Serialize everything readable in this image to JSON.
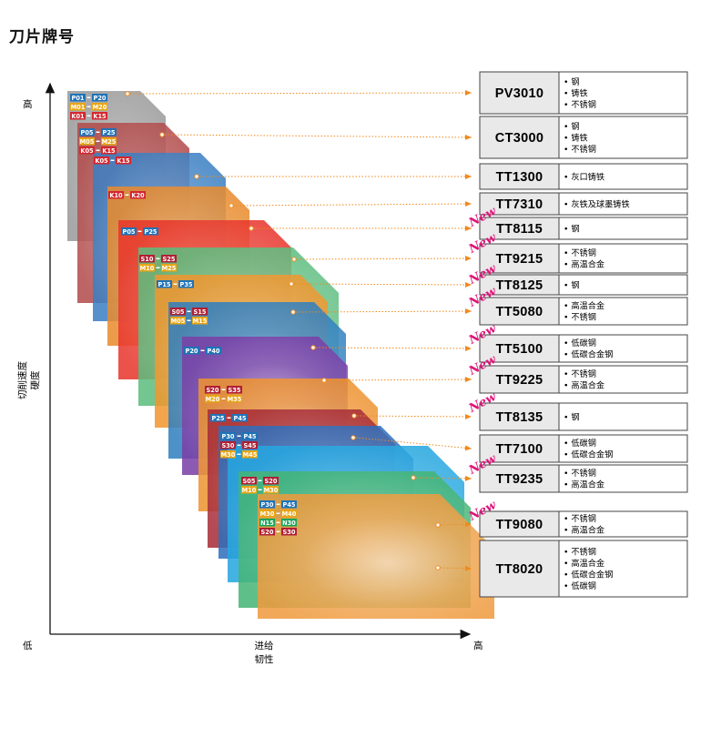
{
  "page": {
    "title": "刀片牌号"
  },
  "axes": {
    "y_high": "高",
    "x_low": "低",
    "x_high": "高",
    "y_label": [
      "切削速度",
      "硬度"
    ],
    "x_label": [
      "进给",
      "韧性"
    ]
  },
  "colors": {
    "arrow": "#f08a1c",
    "box_fill": "#e9e9e9",
    "box_border": "#444444",
    "new": "#e0157a"
  },
  "grades": [
    {
      "code": "PV3010",
      "new": false,
      "materials": [
        "钢",
        "铸铁",
        "不锈钢"
      ],
      "color": "#9a9a9a",
      "tags": [
        [
          "P01",
          "P20"
        ],
        [
          "M01",
          "M20"
        ],
        [
          "K01",
          "K15"
        ]
      ]
    },
    {
      "code": "CT3000",
      "new": false,
      "materials": [
        "钢",
        "铸铁",
        "不锈钢"
      ],
      "color": "#b24a4a",
      "tags": [
        [
          "P05",
          "P25"
        ],
        [
          "M05",
          "M25"
        ],
        [
          "K05",
          "K15"
        ]
      ]
    },
    {
      "code": "TT1300",
      "new": false,
      "materials": [
        "灰口铸铁"
      ],
      "color": "#3a7fc2",
      "tags": [
        [
          "K05",
          "K15"
        ]
      ]
    },
    {
      "code": "TT7310",
      "new": false,
      "materials": [
        "灰铁及球墨铸铁"
      ],
      "color": "#e98a2c",
      "tags": [
        [
          "K10",
          "K20"
        ]
      ]
    },
    {
      "code": "TT8115",
      "new": true,
      "materials": [
        "钢"
      ],
      "color": "#e8352c",
      "tags": [
        [
          "P05",
          "P25"
        ]
      ]
    },
    {
      "code": "TT9215",
      "new": true,
      "materials": [
        "不锈钢",
        "高温合金"
      ],
      "color": "#5cbd7e",
      "tags": [
        [
          "S10",
          "S25"
        ],
        [
          "M10",
          "M25"
        ]
      ]
    },
    {
      "code": "TT8125",
      "new": true,
      "materials": [
        "钢"
      ],
      "color": "#f0962e",
      "tags": [
        [
          "P15",
          "P35"
        ]
      ]
    },
    {
      "code": "TT5080",
      "new": true,
      "materials": [
        "高温合金",
        "不锈钢"
      ],
      "color": "#2f7fbf",
      "tags": [
        [
          "S05",
          "S15"
        ],
        [
          "M05",
          "M15"
        ]
      ]
    },
    {
      "code": "TT5100",
      "new": true,
      "materials": [
        "低碳钢",
        "低碳合金钢"
      ],
      "color": "#7a3fa6",
      "tags": [
        [
          "P20",
          "P40"
        ]
      ]
    },
    {
      "code": "TT9225",
      "new": true,
      "materials": [
        "不锈钢",
        "高温合金"
      ],
      "color": "#ee9330",
      "tags": [
        [
          "S20",
          "S35"
        ],
        [
          "M20",
          "M35"
        ]
      ]
    },
    {
      "code": "TT8135",
      "new": true,
      "materials": [
        "钢"
      ],
      "color": "#a62c38",
      "tags": [
        [
          "P25",
          "P45"
        ]
      ]
    },
    {
      "code": "TT7100",
      "new": false,
      "materials": [
        "低碳钢",
        "低碳合金钢"
      ],
      "color": "#2e6fbc",
      "tags": [
        [
          "P30",
          "P45"
        ],
        [
          "S30",
          "S45"
        ],
        [
          "M30",
          "M45"
        ]
      ]
    },
    {
      "code": "TT9235",
      "new": true,
      "materials": [
        "不锈钢",
        "高温合金"
      ],
      "color": "#25a6e0",
      "tags": [
        [
          "S05",
          "S20"
        ],
        [
          "M10",
          "M30"
        ]
      ]
    },
    {
      "code": "TT9080",
      "new": true,
      "materials": [
        "不锈钢",
        "高温合金"
      ],
      "color": "#45b474",
      "tags": []
    },
    {
      "code": "TT8020",
      "new": false,
      "materials": [
        "不锈钢",
        "高温合金",
        "低碳合金钢",
        "低碳钢"
      ],
      "color": "#ef9a3c",
      "tags": [
        [
          "P30",
          "P45"
        ],
        [
          "M30",
          "M40"
        ],
        [
          "N15",
          "N30"
        ],
        [
          "S20",
          "S30"
        ]
      ]
    }
  ]
}
